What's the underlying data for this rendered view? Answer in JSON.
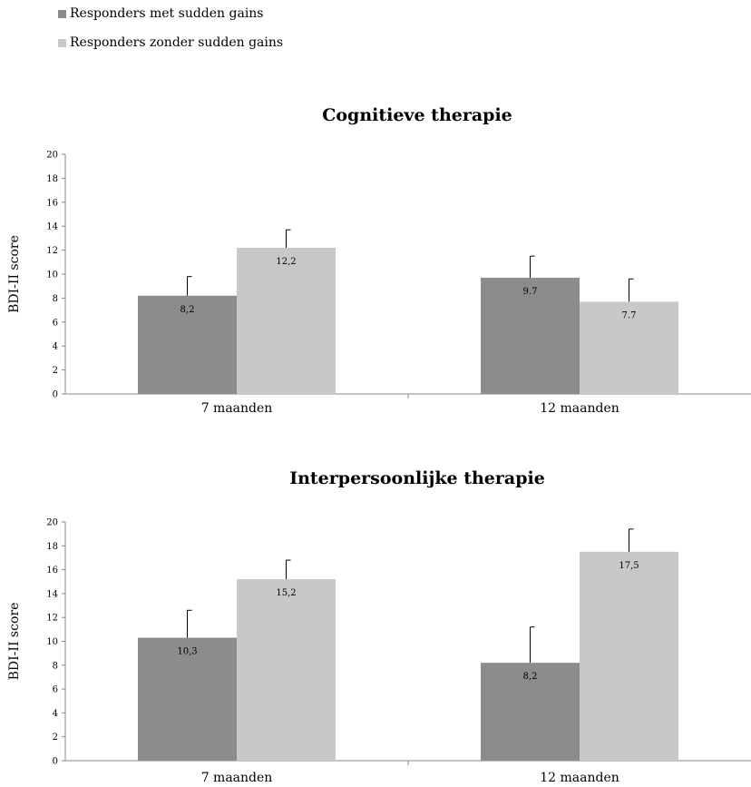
{
  "legend": {
    "items": [
      {
        "label": "Responders met sudden gains",
        "color": "#8c8c8c"
      },
      {
        "label": "Responders zonder sudden gains",
        "color": "#c8c8c8"
      }
    ]
  },
  "chart_data": [
    {
      "type": "bar",
      "title": "Cognitieve therapie",
      "ylabel": "BDI-II score",
      "xlabel": "",
      "categories": [
        "7 maanden",
        "12 maanden"
      ],
      "ylim": [
        0,
        20
      ],
      "yticks": [
        "0",
        "2",
        "4",
        "6",
        "8",
        "10",
        "12",
        "14",
        "16",
        "18",
        "20"
      ],
      "series": [
        {
          "name": "Responders met sudden gains",
          "values": [
            8.2,
            9.7
          ],
          "labels": [
            "8,2",
            "9.7"
          ],
          "errors": [
            1.6,
            1.8
          ],
          "color": "#8c8c8c"
        },
        {
          "name": "Responders zonder sudden gains",
          "values": [
            12.2,
            7.7
          ],
          "labels": [
            "12,2",
            "7.7"
          ],
          "errors": [
            1.5,
            1.9
          ],
          "color": "#c8c8c8"
        }
      ],
      "grid": false
    },
    {
      "type": "bar",
      "title": "Interpersoonlijke therapie",
      "ylabel": "BDI-II score",
      "xlabel": "",
      "categories": [
        "7 maanden",
        "12 maanden"
      ],
      "ylim": [
        0,
        20
      ],
      "yticks": [
        "0",
        "2",
        "4",
        "6",
        "8",
        "10",
        "12",
        "14",
        "16",
        "18",
        "20"
      ],
      "series": [
        {
          "name": "Responders met sudden gains",
          "values": [
            10.3,
            8.2
          ],
          "labels": [
            "10,3",
            "8,2"
          ],
          "errors": [
            2.3,
            3.0
          ],
          "color": "#8c8c8c"
        },
        {
          "name": "Responders zonder sudden gains",
          "values": [
            15.2,
            17.5
          ],
          "labels": [
            "15,2",
            "17,5"
          ],
          "errors": [
            1.6,
            1.9
          ],
          "color": "#c8c8c8"
        }
      ],
      "grid": false
    }
  ]
}
